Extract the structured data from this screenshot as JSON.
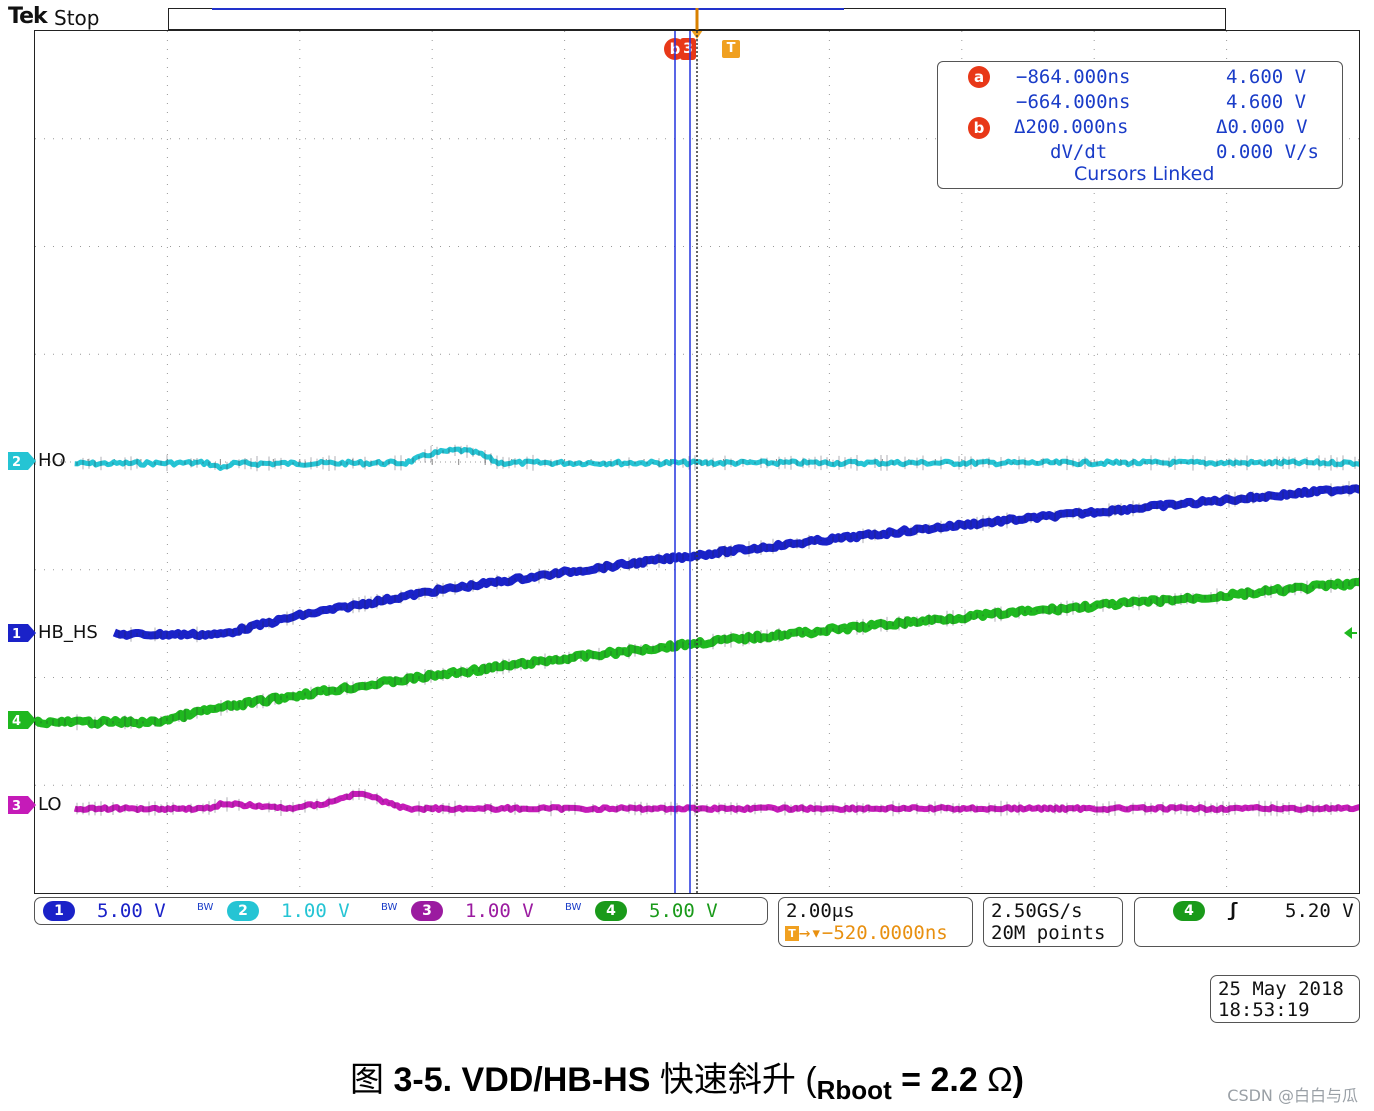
{
  "header": {
    "logo": "Tek",
    "status": "Stop"
  },
  "cursors": {
    "b_marker": "b",
    "a_marker": "a",
    "trigger_marker": "T",
    "ch3_marker": "3"
  },
  "readout": {
    "row1_time": "−864.000ns",
    "row1_volt": "4.600 V",
    "row2_time": "−664.000ns",
    "row2_volt": "4.600 V",
    "row3_time": "Δ200.000ns",
    "row3_volt": "Δ0.000 V",
    "row4_time": "dV/dt",
    "row4_volt": "0.000 V/s",
    "row5": "Cursors Linked"
  },
  "channels": {
    "ch2": {
      "num": "2",
      "label": "HO",
      "scale": "1.00 V",
      "color": "#25c4d4"
    },
    "ch1": {
      "num": "1",
      "label": "HB_HS",
      "scale": "5.00 V",
      "color": "#1a22c8"
    },
    "ch4": {
      "num": "4",
      "label": "",
      "scale": "5.00 V",
      "color": "#1fb81f"
    },
    "ch3": {
      "num": "3",
      "label": "LO",
      "scale": "1.00 V",
      "color": "#c51bb8"
    },
    "bw": "BW"
  },
  "horizontal": {
    "timebase": "2.00μs",
    "position": "→▾−520.0000ns",
    "trig_icon": "T"
  },
  "acquisition": {
    "rate": "2.50GS/s",
    "points": "20M points"
  },
  "trigger": {
    "channel": "4",
    "slope": "ʃ",
    "level": "5.20 V"
  },
  "datetime": {
    "date": "25 May 2018",
    "time": "18:53:19"
  },
  "caption": {
    "prefix": "图 ",
    "number": "3-5. VDD/HB-HS",
    "middle": " 快速斜升 (",
    "sub": "Rboot",
    "eq": " = 2.2",
    "unit": " Ω",
    "close": ")"
  },
  "watermark": "CSDN @白白与瓜"
}
